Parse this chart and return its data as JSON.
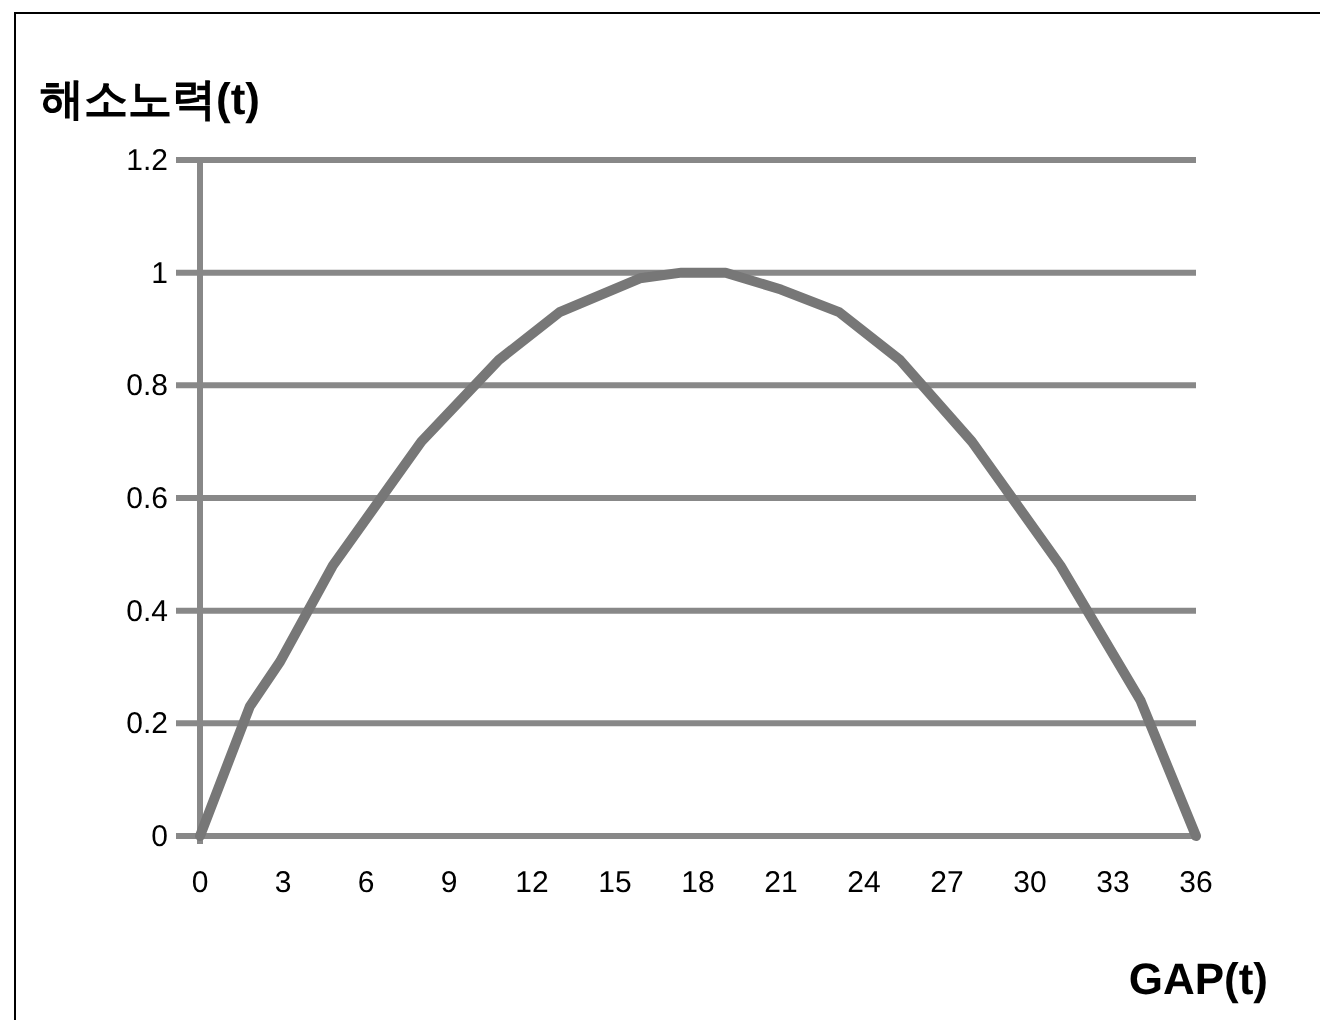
{
  "chart_data": {
    "type": "line",
    "ylabel": "해소노력(t)",
    "xlabel": "GAP(t)",
    "x": [
      0,
      1.8,
      2.9,
      4.8,
      8.0,
      10.8,
      13.0,
      15.9,
      17.4,
      19.0,
      21.0,
      23.1,
      25.3,
      27.9,
      31.1,
      34.0,
      36
    ],
    "series": [
      {
        "color": "#777777",
        "values": [
          0,
          0.23,
          0.31,
          0.48,
          0.7,
          0.845,
          0.93,
          0.99,
          1.0,
          1.0,
          0.97,
          0.93,
          0.845,
          0.7,
          0.48,
          0.24,
          0
        ]
      }
    ],
    "xlim": [
      0,
      36
    ],
    "xticks": [
      0,
      3,
      6,
      9,
      12,
      15,
      18,
      21,
      24,
      27,
      30,
      33,
      36
    ],
    "ylim": [
      0,
      1.2
    ],
    "yticks": [
      0,
      0.2,
      0.4,
      0.6,
      0.8,
      1,
      1.2
    ],
    "grid": "y",
    "line_style": "solid"
  }
}
